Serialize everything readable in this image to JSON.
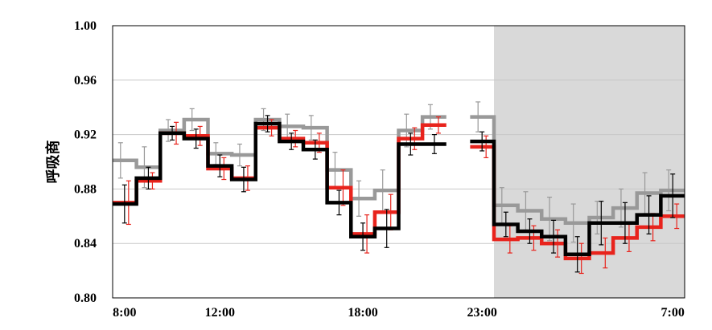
{
  "chart_data": {
    "type": "line",
    "ylabel": "呼吸商",
    "ylim": [
      0.8,
      1.0
    ],
    "yticks": [
      "1.00",
      "0.96",
      "0.92",
      "0.88",
      "0.84",
      "0.80"
    ],
    "yticks_values": [
      1.0,
      0.96,
      0.92,
      0.88,
      0.84,
      0.8
    ],
    "xticks": [
      {
        "label": "8:00",
        "bin": 0.5
      },
      {
        "label": "12:00",
        "bin": 4.5
      },
      {
        "label": "18:00",
        "bin": 10.5
      },
      {
        "label": "23:00",
        "bin": 15.5
      },
      {
        "label": "7:00",
        "bin": 23.5
      }
    ],
    "x_bins": 24,
    "shaded_region": {
      "from_bin": 16,
      "to_bin": 24,
      "color": "#d9d9d9"
    },
    "grid": "horizontal",
    "series": [
      {
        "color": "#000000",
        "values": [
          0.869,
          0.888,
          0.921,
          0.917,
          0.897,
          0.887,
          0.928,
          0.915,
          0.909,
          0.87,
          0.845,
          0.851,
          0.913,
          0.913,
          null,
          0.915,
          0.854,
          0.849,
          0.845,
          0.832,
          0.855,
          0.855,
          0.861,
          0.875
        ],
        "errors": [
          0.014,
          0.008,
          0.005,
          0.007,
          0.008,
          0.009,
          0.006,
          0.006,
          0.007,
          0.009,
          0.01,
          0.014,
          0.008,
          0.007,
          null,
          0.007,
          0.009,
          0.009,
          0.012,
          0.013,
          0.016,
          0.015,
          0.014,
          0.016
        ]
      },
      {
        "color": "#e8231c",
        "values": [
          0.87,
          0.886,
          0.921,
          0.919,
          0.895,
          0.888,
          0.925,
          0.917,
          0.914,
          0.881,
          0.847,
          0.863,
          0.917,
          0.927,
          null,
          0.911,
          0.843,
          0.844,
          0.84,
          0.829,
          0.833,
          0.844,
          0.852,
          0.86
        ],
        "errors": [
          0.016,
          0.006,
          0.008,
          0.007,
          0.008,
          0.009,
          0.006,
          0.006,
          0.007,
          0.013,
          0.014,
          0.013,
          0.008,
          0.006,
          null,
          0.008,
          0.01,
          0.009,
          0.01,
          0.011,
          0.011,
          0.01,
          0.01,
          0.009
        ]
      },
      {
        "color": "#999999",
        "values": [
          0.901,
          0.896,
          0.923,
          0.931,
          0.906,
          0.905,
          0.931,
          0.926,
          0.925,
          0.894,
          0.873,
          0.879,
          0.923,
          0.933,
          null,
          0.933,
          0.868,
          0.864,
          0.858,
          0.855,
          0.859,
          0.866,
          0.877,
          0.879
        ],
        "errors": [
          0.013,
          0.015,
          0.008,
          0.008,
          0.008,
          0.008,
          0.008,
          0.009,
          0.009,
          0.013,
          0.013,
          0.015,
          0.012,
          0.009,
          null,
          0.011,
          0.013,
          0.014,
          0.016,
          0.014,
          0.012,
          0.014,
          0.015,
          0.015
        ]
      }
    ]
  }
}
